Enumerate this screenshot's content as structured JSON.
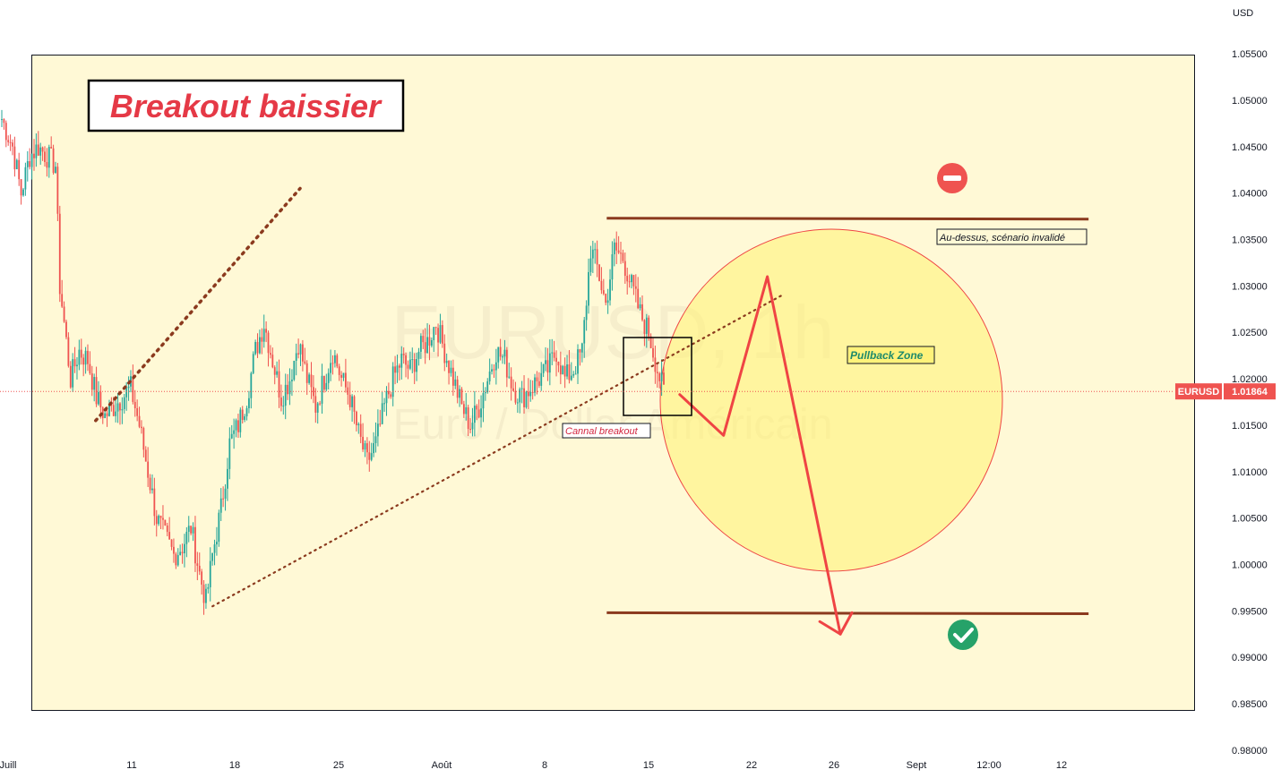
{
  "chart_data": {
    "type": "candlestick",
    "symbol": "EURUSD",
    "timeframe": "1h",
    "watermark_symbol": "EURUSD, 1h",
    "watermark_subtitle": "Euro / Dollar Américain",
    "currency": "USD",
    "title": "Breakout baissier",
    "last_price": "1.01864",
    "last_price_value": 1.01864,
    "ylim": [
      0.977,
      1.0608
    ],
    "y_ticks": [
      "1.05500",
      "1.05000",
      "1.04500",
      "1.04000",
      "1.03500",
      "1.03000",
      "1.02500",
      "1.02000",
      "1.01500",
      "1.01000",
      "1.00500",
      "1.00000",
      "0.99500",
      "0.99000",
      "0.98500",
      "0.98000"
    ],
    "x_ticks": [
      "Juill",
      "11",
      "18",
      "25",
      "Août",
      "8",
      "15",
      "22",
      "26",
      "Sept",
      "12:00",
      "12"
    ],
    "price_anchors": [
      [
        0,
        1.048
      ],
      [
        5,
        1.045
      ],
      [
        9,
        1.04
      ],
      [
        13,
        1.044
      ],
      [
        17,
        1.045
      ],
      [
        21,
        1.044
      ],
      [
        25,
        1.043
      ],
      [
        27,
        1.03
      ],
      [
        32,
        1.02
      ],
      [
        36,
        1.023
      ],
      [
        40,
        1.022
      ],
      [
        44,
        1.018
      ],
      [
        48,
        1.016
      ],
      [
        52,
        1.017
      ],
      [
        56,
        1.018
      ],
      [
        60,
        1.019
      ],
      [
        64,
        1.015
      ],
      [
        68,
        1.01
      ],
      [
        72,
        1.005
      ],
      [
        76,
        1.003
      ],
      [
        80,
        1.001
      ],
      [
        84,
        1.002
      ],
      [
        88,
        1.004
      ],
      [
        92,
        0.999
      ],
      [
        95,
        0.996
      ],
      [
        98,
        1.001
      ],
      [
        102,
        1.006
      ],
      [
        106,
        1.013
      ],
      [
        110,
        1.015
      ],
      [
        114,
        1.018
      ],
      [
        118,
        1.023
      ],
      [
        122,
        1.026
      ],
      [
        126,
        1.022
      ],
      [
        130,
        1.018
      ],
      [
        134,
        1.02
      ],
      [
        138,
        1.024
      ],
      [
        142,
        1.02
      ],
      [
        146,
        1.017
      ],
      [
        150,
        1.02
      ],
      [
        154,
        1.023
      ],
      [
        158,
        1.02
      ],
      [
        162,
        1.018
      ],
      [
        166,
        1.014
      ],
      [
        170,
        1.011
      ],
      [
        174,
        1.013
      ],
      [
        178,
        1.017
      ],
      [
        182,
        1.02
      ],
      [
        186,
        1.022
      ],
      [
        190,
        1.021
      ],
      [
        194,
        1.023
      ],
      [
        198,
        1.024
      ],
      [
        202,
        1.026
      ],
      [
        206,
        1.023
      ],
      [
        210,
        1.02
      ],
      [
        214,
        1.017
      ],
      [
        218,
        1.015
      ],
      [
        222,
        1.017
      ],
      [
        226,
        1.02
      ],
      [
        230,
        1.023
      ],
      [
        234,
        1.022
      ],
      [
        238,
        1.019
      ],
      [
        242,
        1.018
      ],
      [
        246,
        1.019
      ],
      [
        250,
        1.02
      ],
      [
        254,
        1.021
      ],
      [
        258,
        1.023
      ],
      [
        262,
        1.02
      ],
      [
        266,
        1.021
      ],
      [
        270,
        1.023
      ],
      [
        274,
        1.034
      ],
      [
        277,
        1.032
      ],
      [
        281,
        1.028
      ],
      [
        285,
        1.034
      ],
      [
        289,
        1.033
      ],
      [
        293,
        1.03
      ],
      [
        297,
        1.027
      ],
      [
        301,
        1.025
      ],
      [
        305,
        1.021
      ],
      [
        308,
        1.0185
      ]
    ],
    "series": [
      {
        "name": "canal-supérieur",
        "points": [
          [
            "2022-07-07",
            1.0155
          ],
          [
            "2022-07-21",
            1.0405
          ]
        ]
      },
      {
        "name": "canal-inférieur",
        "points": [
          [
            "2022-07-15",
            0.9955
          ],
          [
            "2022-08-23",
            1.029
          ]
        ]
      },
      {
        "name": "résistance",
        "points": [
          [
            "2022-08-11",
            1.0373
          ],
          [
            "2022-09-13",
            1.0372
          ]
        ]
      },
      {
        "name": "support",
        "points": [
          [
            "2022-08-11",
            0.9948
          ],
          [
            "2022-09-13",
            0.9947
          ]
        ]
      },
      {
        "name": "projection",
        "points": [
          [
            "2022-08-16",
            1.0183
          ],
          [
            "2022-08-19",
            1.0139
          ],
          [
            "2022-08-22",
            1.031
          ],
          [
            "2022-08-27",
            0.9925
          ]
        ]
      }
    ],
    "annotations": {
      "invalid_label": "Au-dessus, scénario invalidé",
      "pullback_label": "Pullback Zone",
      "breakout_label": "Cannal breakout"
    },
    "colors": {
      "up": "#26a69a",
      "down": "#ef5350",
      "background_zone": "#fff9d6",
      "trendline": "#8b3a1e",
      "projection": "#ef4444",
      "title_text": "#e53946",
      "pullback_fill": "#fff27a",
      "invalid_icon": "#ef5350",
      "valid_icon": "#26a269"
    },
    "grid": false
  }
}
